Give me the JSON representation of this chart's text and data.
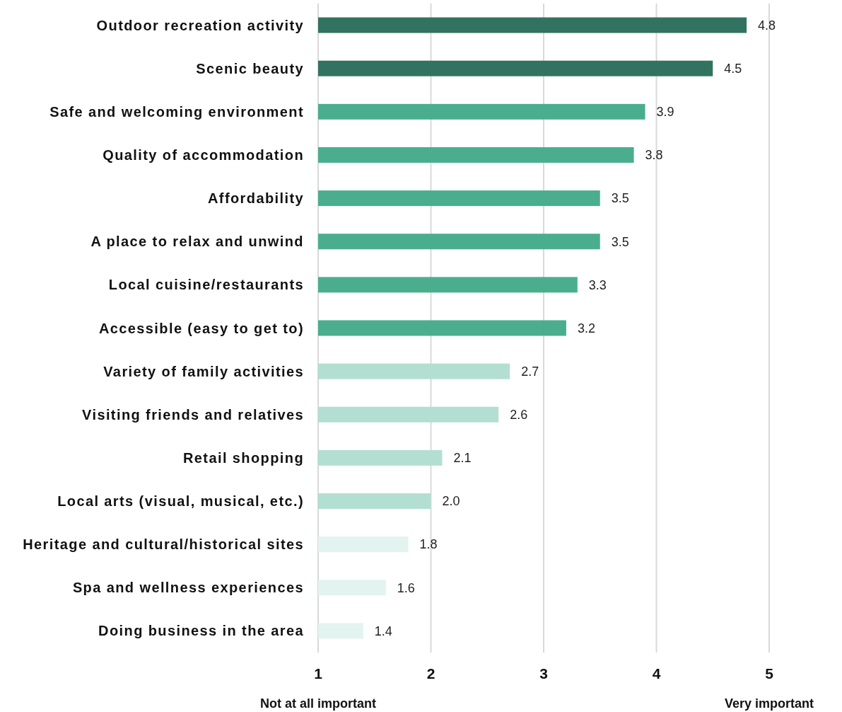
{
  "chart_data": {
    "type": "bar",
    "orientation": "horizontal",
    "categories": [
      "Outdoor recreation activity",
      "Scenic beauty",
      "Safe and welcoming environment",
      "Quality of accommodation",
      "Affordability",
      "A place to relax and unwind",
      "Local cuisine/restaurants",
      "Accessible (easy to get to)",
      "Variety of family activities",
      "Visiting friends and relatives",
      "Retail shopping",
      "Local arts (visual, musical, etc.)",
      "Heritage and cultural/historical sites",
      "Spa and wellness experiences",
      "Doing business in the area"
    ],
    "values": [
      4.8,
      4.5,
      3.9,
      3.8,
      3.5,
      3.5,
      3.3,
      3.2,
      2.7,
      2.6,
      2.1,
      2.0,
      1.8,
      1.6,
      1.4
    ],
    "value_labels": [
      "4.8",
      "4.5",
      "3.9",
      "3.8",
      "3.5",
      "3.5",
      "3.3",
      "3.2",
      "2.7",
      "2.6",
      "2.1",
      "2.0",
      "1.8",
      "1.6",
      "1.4"
    ],
    "colors": [
      "#317360",
      "#317360",
      "#4aae8e",
      "#4aae8e",
      "#4aae8e",
      "#4aae8e",
      "#4aae8e",
      "#4aae8e",
      "#b2dfd2",
      "#b2dfd2",
      "#b2dfd2",
      "#b2dfd2",
      "#e3f3ef",
      "#e3f3ef",
      "#e3f3ef"
    ],
    "xlim": [
      1,
      5
    ],
    "xticks": [
      1,
      2,
      3,
      4,
      5
    ],
    "grid": "x",
    "annotations": [
      "Not at all important",
      "Very important"
    ]
  }
}
